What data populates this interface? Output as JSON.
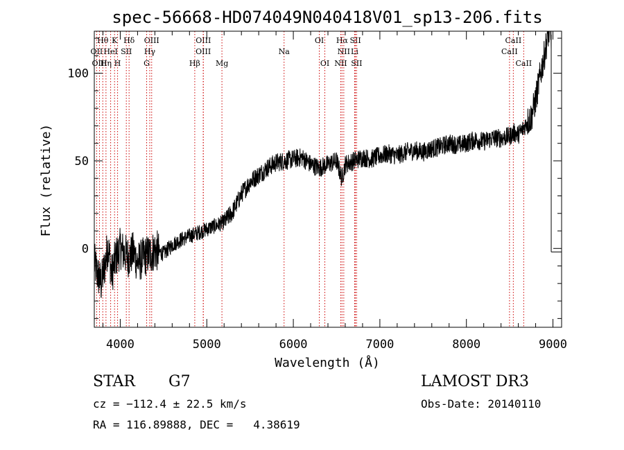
{
  "chart_data": {
    "type": "line",
    "title": "spec-56668-HD074049N040418V01_sp13-206.fits",
    "xlabel": "Wavelength (Å)",
    "ylabel": "Flux (relative)",
    "xlim": [
      3700,
      9100
    ],
    "ylim": [
      -45,
      124
    ],
    "xticks": [
      4000,
      5000,
      6000,
      7000,
      8000,
      9000
    ],
    "yticks": [
      0,
      50,
      100
    ],
    "grid": false,
    "series": [
      {
        "name": "flux",
        "color": "#000000",
        "x": [
          3700,
          3740,
          3780,
          3820,
          3860,
          3900,
          3950,
          4000,
          4050,
          4100,
          4150,
          4200,
          4250,
          4300,
          4350,
          4400,
          4500,
          4600,
          4700,
          4800,
          4900,
          5000,
          5100,
          5200,
          5300,
          5400,
          5500,
          5600,
          5700,
          5800,
          5900,
          6000,
          6100,
          6200,
          6300,
          6400,
          6500,
          6560,
          6600,
          6700,
          6800,
          6900,
          7000,
          7100,
          7200,
          7300,
          7400,
          7500,
          7600,
          7700,
          7800,
          7900,
          8000,
          8100,
          8200,
          8300,
          8400,
          8500,
          8550,
          8600,
          8650,
          8700,
          8750,
          8800,
          8850,
          8900,
          8950,
          8980
        ],
        "y": [
          -8,
          -15,
          -20,
          -10,
          2,
          -15,
          -5,
          0,
          -3,
          -5,
          -2,
          -8,
          -6,
          -4,
          -3,
          -1,
          -3,
          2,
          5,
          7,
          9,
          11,
          13,
          15,
          21,
          31,
          38,
          42,
          46,
          49,
          50,
          51,
          52,
          48,
          46,
          48,
          50,
          40,
          48,
          50,
          52,
          51,
          53,
          54,
          53,
          55,
          56,
          55,
          57,
          58,
          60,
          59,
          60,
          62,
          61,
          63,
          63,
          64,
          66,
          65,
          68,
          72,
          75,
          85,
          98,
          110,
          124,
          122
        ]
      }
    ],
    "lines": [
      {
        "label": "Hθ",
        "x": 3798,
        "row": 0
      },
      {
        "label": "K",
        "x": 3934,
        "row": 0
      },
      {
        "label": "Hδ",
        "x": 4102,
        "row": 0
      },
      {
        "label": "OIII",
        "x": 4363,
        "row": 0
      },
      {
        "label": "OIII",
        "x": 4960,
        "row": 0
      },
      {
        "label": "OI",
        "x": 6300,
        "row": 0
      },
      {
        "label": "Hα",
        "x": 6563,
        "row": 0
      },
      {
        "label": "SII",
        "x": 6717,
        "row": 0
      },
      {
        "label": "CaII",
        "x": 8542,
        "row": 0
      },
      {
        "label": "OII",
        "x": 3727,
        "row": 1
      },
      {
        "label": "HeI",
        "x": 3889,
        "row": 1
      },
      {
        "label": "SII",
        "x": 4070,
        "row": 1
      },
      {
        "label": "Hγ",
        "x": 4341,
        "row": 1
      },
      {
        "label": "OIII",
        "x": 4959,
        "row": 1
      },
      {
        "label": "Na",
        "x": 5893,
        "row": 1
      },
      {
        "label": "NII",
        "x": 6583,
        "row": 1
      },
      {
        "label": "Li",
        "x": 6708,
        "row": 1
      },
      {
        "label": "CaII",
        "x": 8498,
        "row": 1
      },
      {
        "label": "OIII",
        "x": 3760,
        "row": 2
      },
      {
        "label": "Hη",
        "x": 3835,
        "row": 2
      },
      {
        "label": "H",
        "x": 3969,
        "row": 2
      },
      {
        "label": "G",
        "x": 4305,
        "row": 2
      },
      {
        "label": "Hβ",
        "x": 4861,
        "row": 2
      },
      {
        "label": "Mg",
        "x": 5175,
        "row": 2
      },
      {
        "label": "OI",
        "x": 6364,
        "row": 2
      },
      {
        "label": "NII",
        "x": 6548,
        "row": 2
      },
      {
        "label": "SII",
        "x": 6731,
        "row": 2
      },
      {
        "label": "CaII",
        "x": 8662,
        "row": 2
      }
    ]
  },
  "info": {
    "object_class": "STAR",
    "subclass": "G7",
    "survey": "LAMOST DR3",
    "cz": "cz = −112.4 ± 22.5 km/s",
    "obs_date": "Obs-Date: 20140110",
    "coords": "RA = 116.89888, DEC =   4.38619"
  }
}
